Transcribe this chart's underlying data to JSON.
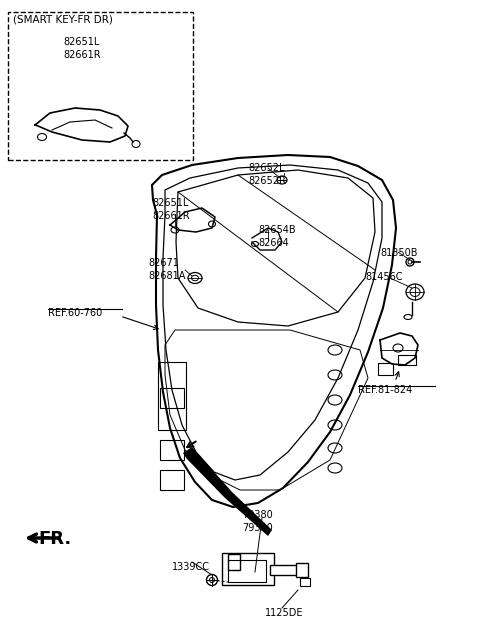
{
  "bg_color": "#ffffff",
  "labels": {
    "smart_key_box_title": "(SMART KEY-FR DR)",
    "smart_key_parts": "82651L\n82661R",
    "part_82652": "82652L\n82652R",
    "part_82651_main": "82651L\n82661R",
    "part_82654": "82654B\n82664",
    "part_82671": "82671\n82681A",
    "part_81350": "81350B",
    "part_81456": "81456C",
    "ref_60": "REF.60-760",
    "ref_81": "REF.81-824",
    "part_79380": "79380\n79390",
    "part_1339": "1339CC",
    "part_1125": "1125DE",
    "fr_label": "FR."
  }
}
